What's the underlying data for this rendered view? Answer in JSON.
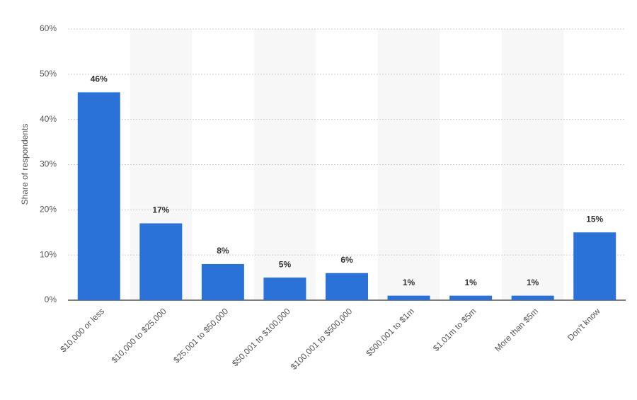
{
  "chart_data": {
    "type": "bar",
    "y_label": "Share of respondents",
    "categories": [
      "$10,000 or less",
      "$10,000 to $25,000",
      "$25,001 to $50,000",
      "$50,001 to $100,000",
      "$100,001 to $500,000",
      "$500,001 to $1m",
      "$1.01m to $5m",
      "More than $5m",
      "Don't know"
    ],
    "values": [
      46,
      17,
      8,
      5,
      6,
      1,
      1,
      1,
      15
    ],
    "value_labels": [
      "46%",
      "17%",
      "8%",
      "5%",
      "6%",
      "1%",
      "1%",
      "1%",
      "15%"
    ],
    "color": "#2a72d8",
    "ylim": [
      0,
      60
    ],
    "yticks": [
      {
        "value": 0,
        "label": "0%"
      },
      {
        "value": 10,
        "label": "10%"
      },
      {
        "value": 20,
        "label": "20%"
      },
      {
        "value": 30,
        "label": "30%"
      },
      {
        "value": 40,
        "label": "40%"
      },
      {
        "value": 50,
        "label": "50%"
      },
      {
        "value": 60,
        "label": "60%"
      }
    ],
    "grid": true
  }
}
